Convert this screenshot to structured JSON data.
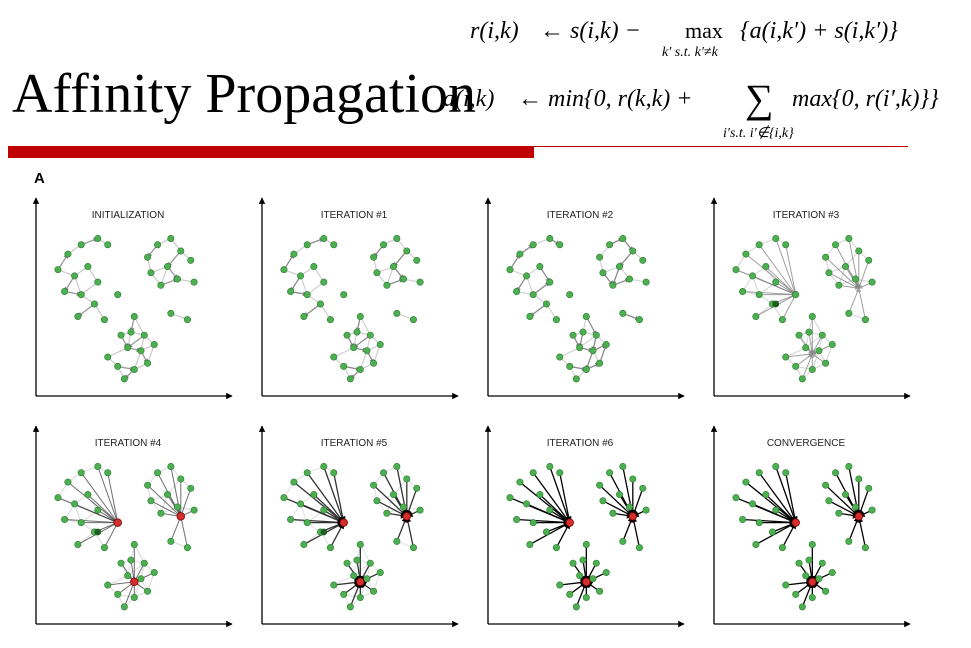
{
  "slide": {
    "title": "Affinity Propagation",
    "panel_letter": "A"
  },
  "equations": {
    "responsibility": {
      "lhs": "r(i,k)",
      "arrow": "←",
      "rhs_a": "s(i,k) −",
      "max": "max",
      "max_sub": "k′ s.t. k′≠k",
      "rhs_b": "{a(i,k′) + s(i,k′)}"
    },
    "availability": {
      "lhs": "a(i,k)",
      "arrow": "←",
      "rhs_a": "min{0, r(k,k) +",
      "sum": "∑",
      "sum_sub": "i′s.t. i′∉{i,k}",
      "rhs_b": "max{0, r(i′,k)}}"
    }
  },
  "panels": [
    {
      "title": "INITIALIZATION",
      "stage": 0
    },
    {
      "title": "ITERATION #1",
      "stage": 1
    },
    {
      "title": "ITERATION #2",
      "stage": 2
    },
    {
      "title": "ITERATION #3",
      "stage": 3
    },
    {
      "title": "ITERATION #4",
      "stage": 4
    },
    {
      "title": "ITERATION #5",
      "stage": 5
    },
    {
      "title": "ITERATION #6",
      "stage": 6
    },
    {
      "title": "CONVERGENCE",
      "stage": 7
    }
  ],
  "colors": {
    "accent_red": "#c00000",
    "point_green": "#4caf50",
    "exemplar_red": "#d32f2f",
    "candidate_dark": "#1b5e20"
  }
}
